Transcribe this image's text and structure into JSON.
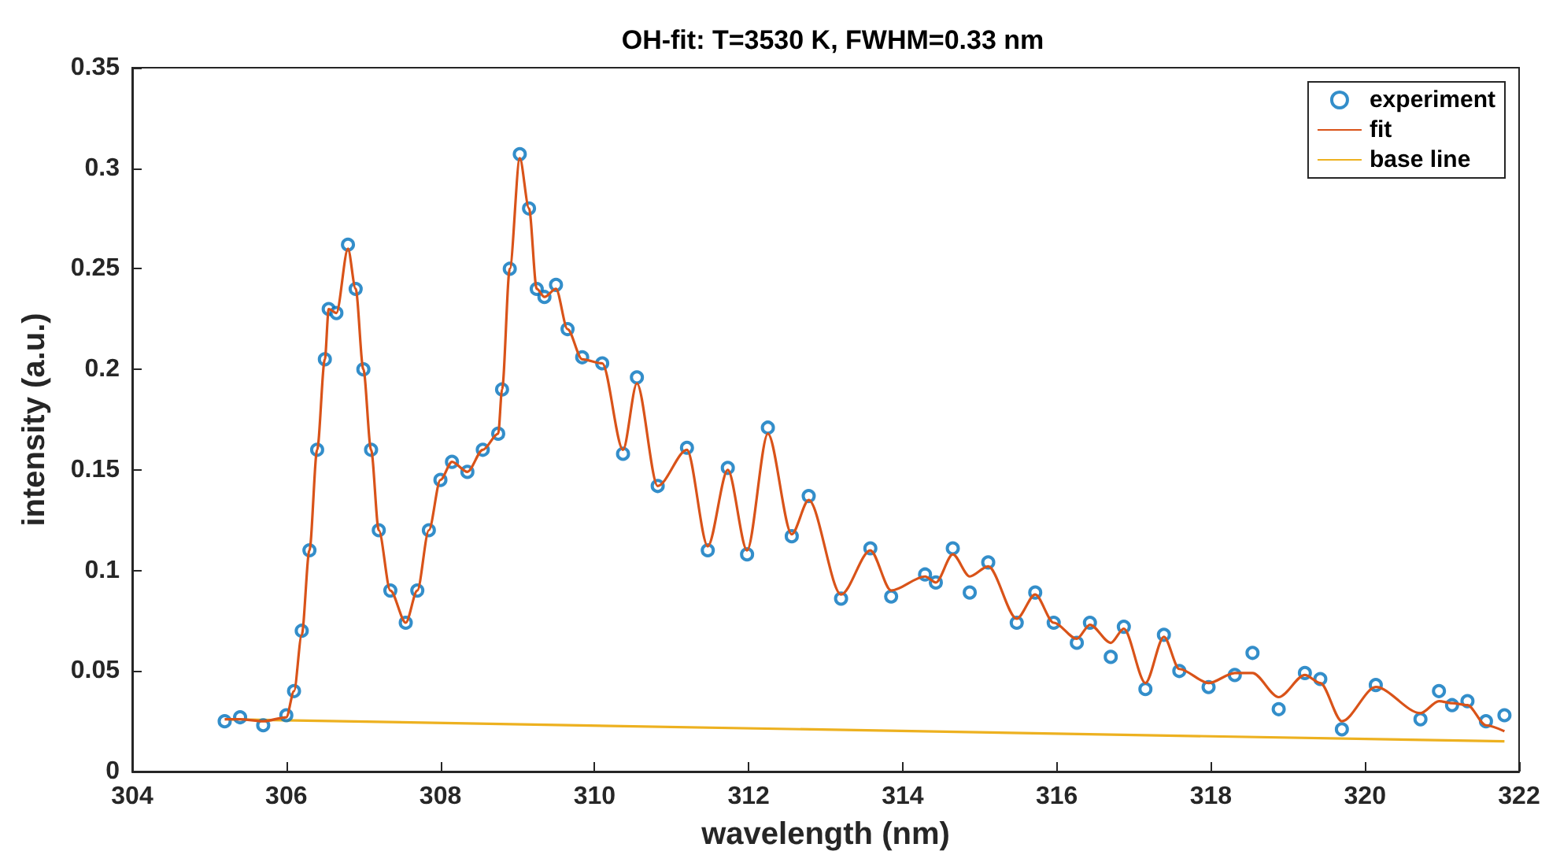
{
  "chart_data": {
    "type": "scatter",
    "title": "OH-fit: T=3530 K, FWHM=0.33 nm",
    "xlabel": "wavelength (nm)",
    "ylabel": "intensity (a.u.)",
    "x": [
      305.2,
      305.4,
      305.7,
      306.0,
      306.1,
      306.2,
      306.3,
      306.4,
      306.5,
      306.55,
      306.65,
      306.8,
      306.9,
      307.0,
      307.1,
      307.2,
      307.35,
      307.55,
      307.7,
      307.85,
      308.0,
      308.15,
      308.35,
      308.55,
      308.75,
      308.8,
      308.9,
      309.03,
      309.15,
      309.25,
      309.35,
      309.5,
      309.65,
      309.84,
      310.1,
      310.37,
      310.55,
      310.82,
      311.2,
      311.47,
      311.73,
      311.98,
      312.25,
      312.56,
      312.78,
      313.2,
      313.58,
      313.85,
      314.29,
      314.43,
      314.65,
      314.87,
      315.11,
      315.48,
      315.72,
      315.96,
      316.26,
      316.43,
      316.7,
      316.87,
      317.15,
      317.39,
      317.59,
      317.97,
      318.31,
      318.54,
      318.88,
      319.22,
      319.42,
      319.7,
      320.14,
      320.72,
      320.96,
      321.13,
      321.33,
      321.57,
      321.81
    ],
    "series": [
      {
        "name": "experiment",
        "marker": "circle",
        "color": "#0072bd",
        "values": [
          0.025,
          0.027,
          0.023,
          0.028,
          0.04,
          0.07,
          0.11,
          0.16,
          0.205,
          0.23,
          0.228,
          0.262,
          0.24,
          0.2,
          0.16,
          0.12,
          0.09,
          0.074,
          0.09,
          0.12,
          0.145,
          0.154,
          0.149,
          0.16,
          0.168,
          0.19,
          0.25,
          0.307,
          0.28,
          0.24,
          0.236,
          0.242,
          0.22,
          0.206,
          0.203,
          0.158,
          0.196,
          0.142,
          0.161,
          0.11,
          0.151,
          0.108,
          0.171,
          0.117,
          0.137,
          0.086,
          0.111,
          0.087,
          0.098,
          0.094,
          0.111,
          0.089,
          0.104,
          0.074,
          0.089,
          0.074,
          0.064,
          0.074,
          0.057,
          0.072,
          0.041,
          0.068,
          0.05,
          0.042,
          0.048,
          0.059,
          0.031,
          0.049,
          0.046,
          0.021,
          0.043,
          0.026,
          0.04,
          0.033,
          0.035,
          0.025,
          0.028
        ]
      },
      {
        "name": "fit",
        "type": "line",
        "marker": "none",
        "color": "#d95319",
        "values": [
          0.026,
          0.026,
          0.025,
          0.027,
          0.04,
          0.068,
          0.11,
          0.16,
          0.205,
          0.23,
          0.228,
          0.26,
          0.24,
          0.2,
          0.16,
          0.12,
          0.09,
          0.074,
          0.09,
          0.12,
          0.145,
          0.154,
          0.149,
          0.16,
          0.168,
          0.19,
          0.25,
          0.305,
          0.28,
          0.24,
          0.236,
          0.24,
          0.22,
          0.205,
          0.203,
          0.16,
          0.193,
          0.142,
          0.16,
          0.112,
          0.15,
          0.11,
          0.168,
          0.118,
          0.135,
          0.088,
          0.11,
          0.09,
          0.097,
          0.094,
          0.108,
          0.097,
          0.102,
          0.076,
          0.088,
          0.074,
          0.066,
          0.073,
          0.064,
          0.071,
          0.044,
          0.067,
          0.051,
          0.044,
          0.049,
          0.049,
          0.037,
          0.048,
          0.044,
          0.025,
          0.042,
          0.029,
          0.035,
          0.034,
          0.033,
          0.023,
          0.02
        ]
      },
      {
        "name": "base line",
        "type": "line",
        "marker": "none",
        "color": "#edb120",
        "x": [
          305.2,
          321.81
        ],
        "values": [
          0.026,
          0.015
        ]
      }
    ],
    "xlim": [
      304,
      322
    ],
    "xticks": [
      304,
      306,
      308,
      310,
      312,
      314,
      316,
      318,
      320,
      322
    ],
    "ylim": [
      0,
      0.35
    ],
    "yticks": [
      0,
      0.05,
      0.1,
      0.15,
      0.2,
      0.25,
      0.3,
      0.35
    ],
    "legend": "top right"
  }
}
